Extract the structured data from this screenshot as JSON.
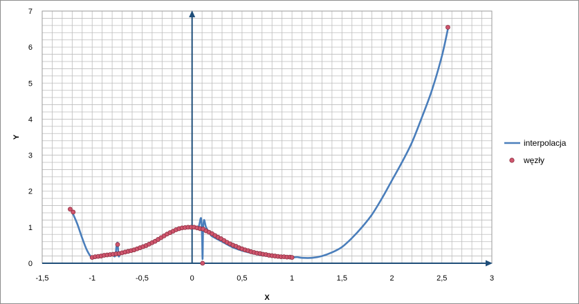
{
  "chart_data": {
    "type": "scatter",
    "xlabel": "X",
    "ylabel": "Y",
    "xlim": [
      -1.5,
      3
    ],
    "ylim": [
      0,
      7
    ],
    "x_major_step": 0.5,
    "y_major_step": 1,
    "grid": true,
    "x_tick_labels": [
      "-1,5",
      "-1",
      "-0,5",
      "0",
      "0,5",
      "1",
      "1,5",
      "2",
      "2,5",
      "3"
    ],
    "y_tick_labels": [
      "0",
      "1",
      "2",
      "3",
      "4",
      "5",
      "6",
      "7"
    ],
    "legend_position": "right",
    "colors": {
      "line": "#4a7ebb",
      "marker_fill": "#d0566e",
      "marker_edge": "#8b2d3f",
      "grid": "#bdbdbd",
      "axis": "#1f4e79"
    },
    "series": [
      {
        "name": "interpolacja",
        "kind": "line",
        "x": [
          -1.2,
          -1.15,
          -1.1,
          -1.05,
          -1.0,
          -0.95,
          -0.9,
          -0.85,
          -0.8,
          -0.77,
          -0.755,
          -0.745,
          -0.735,
          -0.72,
          -0.7,
          -0.6,
          -0.5,
          -0.4,
          -0.3,
          -0.2,
          -0.1,
          0.0,
          0.06,
          0.09,
          0.1,
          0.105,
          0.11,
          0.12,
          0.14,
          0.18,
          0.2,
          0.3,
          0.4,
          0.5,
          0.6,
          0.7,
          0.8,
          0.9,
          1.0,
          1.05,
          1.1,
          1.2,
          1.3,
          1.4,
          1.5,
          1.6,
          1.7,
          1.8,
          1.9,
          2.0,
          2.1,
          2.2,
          2.3,
          2.4,
          2.5,
          2.56
        ],
        "y": [
          1.42,
          1.1,
          0.7,
          0.35,
          0.15,
          0.17,
          0.19,
          0.22,
          0.24,
          0.2,
          0.5,
          0.55,
          0.2,
          0.26,
          0.28,
          0.35,
          0.45,
          0.59,
          0.74,
          0.88,
          0.98,
          1.0,
          0.98,
          1.25,
          0.7,
          0.12,
          0.9,
          1.2,
          1.0,
          0.82,
          0.75,
          0.6,
          0.45,
          0.35,
          0.28,
          0.22,
          0.19,
          0.17,
          0.16,
          0.17,
          0.15,
          0.15,
          0.2,
          0.3,
          0.45,
          0.7,
          1.0,
          1.35,
          1.8,
          2.3,
          2.8,
          3.35,
          4.05,
          4.8,
          5.75,
          6.5
        ]
      },
      {
        "name": "węzły",
        "kind": "markers",
        "x": [
          -1.22,
          -1.19,
          -0.745,
          0.105,
          -1.0,
          -0.97,
          -0.94,
          -0.91,
          -0.88,
          -0.85,
          -0.82,
          -0.79,
          -0.76,
          -0.73,
          -0.7,
          -0.67,
          -0.64,
          -0.61,
          -0.58,
          -0.55,
          -0.52,
          -0.49,
          -0.46,
          -0.43,
          -0.4,
          -0.37,
          -0.34,
          -0.31,
          -0.28,
          -0.25,
          -0.22,
          -0.19,
          -0.16,
          -0.13,
          -0.1,
          -0.07,
          -0.04,
          -0.01,
          0.02,
          0.05,
          0.08,
          0.11,
          0.14,
          0.17,
          0.2,
          0.23,
          0.26,
          0.29,
          0.32,
          0.35,
          0.38,
          0.41,
          0.44,
          0.47,
          0.5,
          0.53,
          0.56,
          0.59,
          0.62,
          0.65,
          0.68,
          0.71,
          0.74,
          0.77,
          0.8,
          0.83,
          0.86,
          0.89,
          0.92,
          0.95,
          0.98,
          1.0,
          2.56
        ],
        "y": [
          1.5,
          1.42,
          0.52,
          0.0,
          0.16,
          0.18,
          0.19,
          0.2,
          0.22,
          0.23,
          0.24,
          0.25,
          0.26,
          0.27,
          0.29,
          0.31,
          0.33,
          0.35,
          0.37,
          0.4,
          0.43,
          0.46,
          0.49,
          0.53,
          0.57,
          0.61,
          0.66,
          0.71,
          0.76,
          0.81,
          0.85,
          0.89,
          0.93,
          0.96,
          0.98,
          0.99,
          1.0,
          1.0,
          1.0,
          0.98,
          0.96,
          0.95,
          0.9,
          0.86,
          0.82,
          0.77,
          0.72,
          0.68,
          0.63,
          0.58,
          0.54,
          0.5,
          0.47,
          0.43,
          0.4,
          0.37,
          0.35,
          0.32,
          0.3,
          0.28,
          0.27,
          0.25,
          0.24,
          0.22,
          0.21,
          0.2,
          0.19,
          0.18,
          0.18,
          0.17,
          0.17,
          0.16,
          6.55
        ]
      }
    ]
  }
}
